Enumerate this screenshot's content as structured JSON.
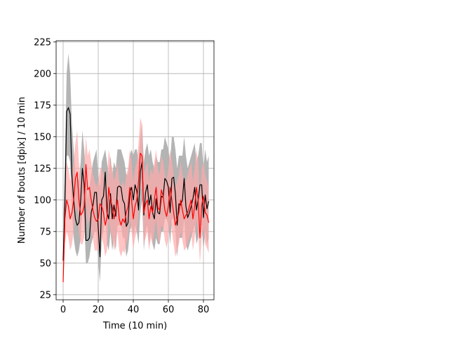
{
  "chart_data": {
    "type": "line",
    "title": "",
    "xlabel": "Time (10 min)",
    "ylabel": "Number of bouts [dpix]  / 10 min",
    "xlim": [
      -4,
      86
    ],
    "ylim": [
      21,
      226
    ],
    "xticks": [
      0,
      20,
      40,
      60,
      80
    ],
    "yticks": [
      25,
      50,
      75,
      100,
      125,
      150,
      175,
      200,
      225
    ],
    "grid": true,
    "legend": "none",
    "series": [
      {
        "name": "black",
        "color": "#000000",
        "band_color": "#b0b0b0",
        "mean": [
          52,
          95,
          170,
          173,
          168,
          120,
          100,
          85,
          80,
          82,
          100,
          125,
          112,
          68,
          68,
          70,
          90,
          96,
          106,
          106,
          78,
          55,
          100,
          103,
          122,
          90,
          85,
          105,
          85,
          96,
          87,
          110,
          111,
          110,
          100,
          97,
          79,
          82,
          106,
          110,
          100,
          112,
          107,
          92,
          122,
          130,
          88,
          106,
          112,
          96,
          104,
          90,
          85,
          101,
          90,
          89,
          103,
          102,
          117,
          115,
          110,
          90,
          117,
          118,
          105,
          80,
          97,
          96,
          100,
          117,
          95,
          86,
          90,
          95,
          101,
          110,
          92,
          100,
          112,
          112,
          86,
          104,
          93,
          99
        ],
        "upper": [
          80,
          130,
          200,
          216,
          200,
          160,
          140,
          120,
          118,
          115,
          130,
          155,
          140,
          120,
          100,
          110,
          120,
          130,
          135,
          140,
          120,
          110,
          130,
          135,
          140,
          130,
          120,
          135,
          120,
          130,
          125,
          140,
          140,
          140,
          135,
          130,
          120,
          120,
          135,
          140,
          135,
          140,
          140,
          130,
          150,
          160,
          130,
          140,
          145,
          135,
          140,
          130,
          125,
          135,
          130,
          130,
          140,
          140,
          150,
          145,
          140,
          130,
          150,
          150,
          140,
          125,
          135,
          135,
          135,
          150,
          135,
          125,
          130,
          135,
          140,
          145,
          130,
          135,
          145,
          145,
          125,
          140,
          130,
          135
        ],
        "lower": [
          40,
          70,
          135,
          135,
          130,
          90,
          70,
          60,
          55,
          60,
          70,
          95,
          85,
          50,
          50,
          55,
          65,
          70,
          75,
          75,
          50,
          35,
          70,
          75,
          95,
          65,
          60,
          75,
          60,
          70,
          60,
          80,
          80,
          80,
          70,
          70,
          55,
          60,
          75,
          80,
          70,
          80,
          75,
          65,
          90,
          100,
          60,
          75,
          80,
          65,
          75,
          65,
          60,
          70,
          65,
          65,
          75,
          75,
          85,
          85,
          80,
          65,
          85,
          85,
          75,
          55,
          70,
          70,
          70,
          85,
          65,
          60,
          65,
          70,
          75,
          80,
          65,
          70,
          80,
          80,
          60,
          75,
          65,
          70
        ]
      },
      {
        "name": "red",
        "color": "#ff0000",
        "band_color": "#ffaaaa",
        "mean": [
          35,
          85,
          100,
          95,
          85,
          90,
          100,
          117,
          122,
          100,
          88,
          90,
          95,
          128,
          108,
          110,
          100,
          92,
          86,
          83,
          85,
          97,
          95,
          90,
          80,
          86,
          110,
          100,
          95,
          85,
          92,
          100,
          85,
          80,
          85,
          82,
          90,
          95,
          110,
          100,
          85,
          95,
          100,
          115,
          137,
          135,
          90,
          97,
          100,
          85,
          95,
          90,
          100,
          110,
          94,
          92,
          108,
          103,
          92,
          87,
          95,
          110,
          100,
          90,
          80,
          85,
          90,
          100,
          92,
          85,
          88,
          90,
          95,
          100,
          85,
          95,
          110,
          100,
          70,
          96,
          103,
          90,
          88,
          82
        ],
        "upper": [
          50,
          110,
          130,
          125,
          115,
          120,
          130,
          145,
          155,
          130,
          115,
          120,
          125,
          150,
          135,
          140,
          130,
          120,
          115,
          110,
          115,
          125,
          125,
          120,
          110,
          115,
          140,
          130,
          125,
          115,
          120,
          130,
          115,
          110,
          115,
          110,
          120,
          125,
          140,
          130,
          115,
          125,
          130,
          145,
          165,
          160,
          120,
          125,
          130,
          115,
          125,
          120,
          130,
          140,
          125,
          120,
          135,
          130,
          120,
          115,
          125,
          140,
          130,
          120,
          110,
          115,
          120,
          130,
          120,
          115,
          115,
          120,
          125,
          130,
          115,
          125,
          140,
          130,
          100,
          125,
          130,
          120,
          115,
          110
        ],
        "lower": [
          30,
          65,
          75,
          70,
          60,
          65,
          75,
          90,
          95,
          75,
          65,
          65,
          70,
          100,
          80,
          85,
          75,
          70,
          60,
          60,
          60,
          70,
          70,
          65,
          55,
          60,
          85,
          75,
          70,
          60,
          65,
          75,
          60,
          55,
          60,
          58,
          65,
          70,
          85,
          75,
          60,
          70,
          75,
          90,
          110,
          108,
          65,
          70,
          75,
          60,
          70,
          65,
          75,
          85,
          70,
          65,
          80,
          78,
          68,
          62,
          70,
          85,
          75,
          65,
          55,
          60,
          65,
          75,
          68,
          60,
          62,
          65,
          70,
          75,
          60,
          70,
          85,
          75,
          50,
          70,
          78,
          65,
          62,
          58
        ]
      }
    ]
  }
}
